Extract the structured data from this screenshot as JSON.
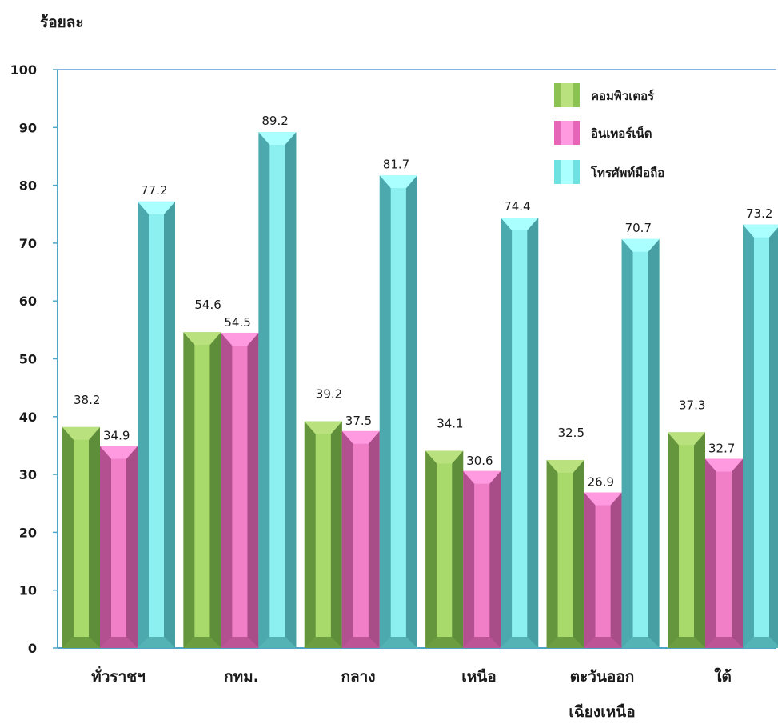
{
  "chart_data": {
    "type": "bar",
    "ylabel": "ร้อยละ",
    "ylim": [
      0,
      100
    ],
    "yticks": [
      0,
      10,
      20,
      30,
      40,
      50,
      60,
      70,
      80,
      90,
      100
    ],
    "categories": [
      [
        "ทั่วราชฯ"
      ],
      [
        "กทม."
      ],
      [
        "กลาง"
      ],
      [
        "เหนือ"
      ],
      [
        "ตะวันออก",
        "เฉียงเหนือ"
      ],
      [
        "ใต้"
      ]
    ],
    "series": [
      {
        "name": "คอมพิวเตอร์",
        "values": [
          38.2,
          54.6,
          39.2,
          34.1,
          32.5,
          37.3
        ]
      },
      {
        "name": "อินเทอร์เน็ต",
        "values": [
          34.9,
          54.5,
          37.5,
          30.6,
          26.9,
          32.7
        ]
      },
      {
        "name": "โทรศัพท์มือถือ",
        "values": [
          77.2,
          89.2,
          81.7,
          74.4,
          70.7,
          73.2
        ]
      }
    ],
    "value_labels": [
      [
        "38.2",
        "54.6",
        "39.2",
        "34.1",
        "32.5",
        "37.3"
      ],
      [
        "34.9",
        "54.5",
        "37.5",
        "30.6",
        "26.9",
        "32.7"
      ],
      [
        "77.2",
        "89.2",
        "81.7",
        "74.4",
        "70.7",
        "73.2"
      ]
    ],
    "legend_position": "top-right",
    "grid": false,
    "colors": {
      "series": [
        {
          "front": "#8cc251",
          "top": "#b9e27f",
          "side": "#5e8e3a",
          "highlight": "#a8d96b"
        },
        {
          "front": "#e765b6",
          "top": "#ff9ae0",
          "side": "#a94d89",
          "highlight": "#f07fc8"
        },
        {
          "front": "#6ee1e1",
          "top": "#aaffff",
          "side": "#479fa3",
          "highlight": "#8cf0f0"
        }
      ],
      "axis": "#4da6c8",
      "frame": "#5b9bd5"
    }
  }
}
